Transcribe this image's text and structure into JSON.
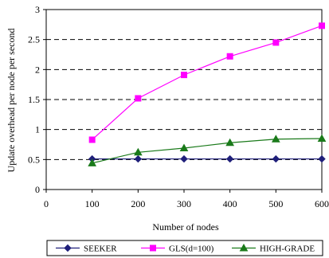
{
  "chart_data": {
    "type": "line",
    "title": "",
    "xlabel": "Number of nodes",
    "ylabel": "Update overhead per node per second",
    "xlim": [
      0,
      600
    ],
    "ylim": [
      0,
      3
    ],
    "x_ticks": [
      0,
      100,
      200,
      300,
      400,
      500,
      600
    ],
    "y_ticks": [
      0,
      0.5,
      1,
      1.5,
      2,
      2.5,
      3
    ],
    "grid": "horizontal dashed",
    "legend_position": "bottom",
    "x": [
      100,
      200,
      300,
      400,
      500,
      600
    ],
    "series": [
      {
        "name": "SEEKER",
        "color": "#1f1f7a",
        "marker": "diamond",
        "values": [
          0.51,
          0.51,
          0.51,
          0.51,
          0.51,
          0.51
        ]
      },
      {
        "name": "GLS(d=100)",
        "color": "#ff00ff",
        "marker": "square",
        "values": [
          0.83,
          1.52,
          1.91,
          2.22,
          2.45,
          2.73
        ]
      },
      {
        "name": "HIGH-GRADE",
        "color": "#1a7a1a",
        "marker": "triangle",
        "values": [
          0.44,
          0.62,
          0.69,
          0.78,
          0.84,
          0.85
        ]
      }
    ]
  }
}
